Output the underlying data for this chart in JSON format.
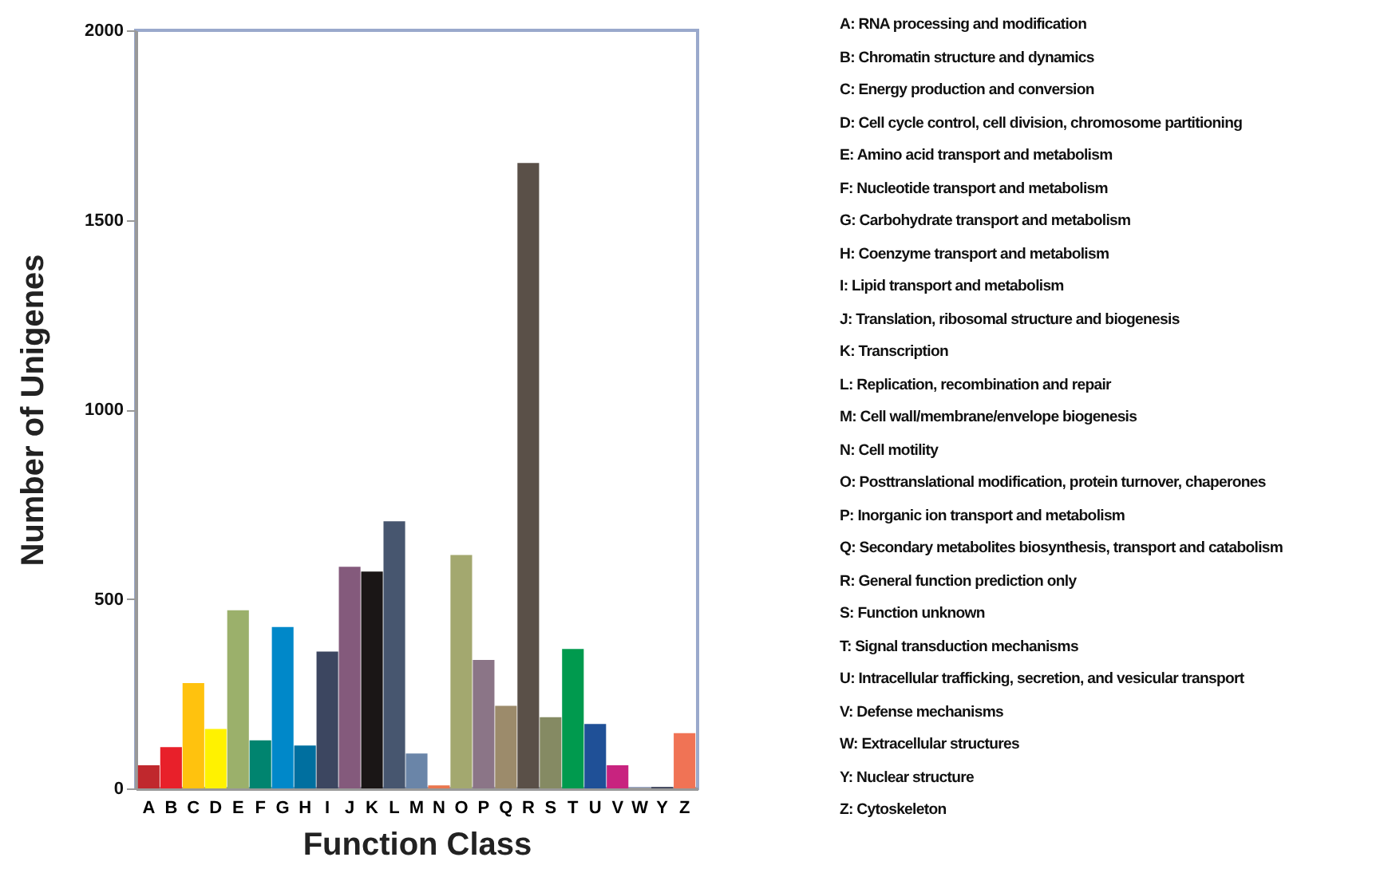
{
  "chart_data": {
    "type": "bar",
    "xlabel": "Function Class",
    "ylabel": "Number of Unigenes",
    "categories": [
      "A",
      "B",
      "C",
      "D",
      "E",
      "F",
      "G",
      "H",
      "I",
      "J",
      "K",
      "L",
      "M",
      "N",
      "O",
      "P",
      "Q",
      "R",
      "S",
      "T",
      "U",
      "V",
      "W",
      "Y",
      "Z"
    ],
    "values": [
      61,
      109,
      278,
      157,
      470,
      127,
      426,
      113,
      361,
      585,
      572,
      705,
      92,
      8,
      616,
      339,
      218,
      1650,
      188,
      368,
      170,
      61,
      0,
      4,
      146
    ],
    "colors": [
      "#c0282d",
      "#e8202a",
      "#ffc20e",
      "#fff200",
      "#9bb06b",
      "#00846f",
      "#0088c9",
      "#006f9f",
      "#3c4660",
      "#845a7c",
      "#1a1616",
      "#47566f",
      "#6a85a8",
      "#e9764f",
      "#a3a86f",
      "#8b7587",
      "#9c8b6b",
      "#5a5048",
      "#858a63",
      "#009a4e",
      "#1f5097",
      "#c8237f",
      "#888888",
      "#454a5e",
      "#f07355"
    ],
    "ylim": [
      0,
      2000
    ],
    "yticks": [
      0,
      500,
      1000,
      1500,
      2000
    ],
    "grid": false,
    "annotations": [
      "A: RNA processing and modification",
      "B: Chromatin structure and dynamics",
      "C: Energy production and conversion",
      "D: Cell cycle control, cell division, chromosome partitioning",
      "E: Amino acid transport and metabolism",
      "F: Nucleotide transport and metabolism",
      "G: Carbohydrate transport and metabolism",
      "H: Coenzyme transport and metabolism",
      "I: Lipid transport and metabolism",
      "J: Translation, ribosomal structure and biogenesis",
      "K: Transcription",
      "L: Replication, recombination and repair",
      "M: Cell wall/membrane/envelope biogenesis",
      "N: Cell motility",
      "O: Posttranslational modification, protein turnover, chaperones",
      "P: Inorganic ion transport and metabolism",
      "Q: Secondary metabolites biosynthesis, transport and catabolism",
      "R: General function prediction only",
      "S: Function unknown",
      "T: Signal transduction mechanisms",
      "U: Intracellular trafficking, secretion, and vesicular transport",
      "V: Defense mechanisms",
      "W: Extracellular structures",
      "Y: Nuclear structure",
      "Z: Cytoskeleton"
    ]
  }
}
